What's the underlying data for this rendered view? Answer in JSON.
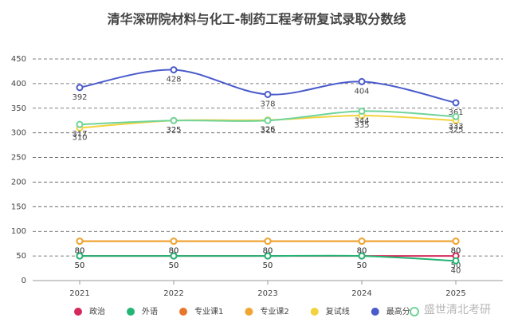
{
  "chart_data": {
    "type": "line",
    "title": "清华深研院材料与化工-制药工程考研复试录取分数线",
    "categories": [
      "2021",
      "2022",
      "2023",
      "2024",
      "2025"
    ],
    "series": [
      {
        "name": "政治",
        "color": "#d42a5a",
        "values": [
          50,
          50,
          50,
          50,
          50
        ]
      },
      {
        "name": "外语",
        "color": "#22b573",
        "values": [
          50,
          50,
          50,
          50,
          40
        ]
      },
      {
        "name": "专业课1",
        "color": "#e8772e",
        "values": [
          80,
          80,
          80,
          80,
          80
        ]
      },
      {
        "name": "专业课2",
        "color": "#f0a532",
        "values": [
          80,
          80,
          80,
          80,
          80
        ]
      },
      {
        "name": "复试线",
        "color": "#f3d33d",
        "values": [
          310,
          325,
          326,
          335,
          325
        ]
      },
      {
        "name": "最高分",
        "color": "#4a5bcc",
        "values": [
          392,
          428,
          378,
          404,
          361
        ]
      },
      {
        "color": "#6fd49a",
        "values": [
          317,
          325,
          325,
          344,
          333
        ]
      }
    ],
    "ylim": [
      0,
      450
    ],
    "yticks": [
      0,
      50,
      100,
      150,
      200,
      250,
      300,
      350,
      400,
      450
    ],
    "grid": true,
    "watermark": "盛世清北考研"
  }
}
